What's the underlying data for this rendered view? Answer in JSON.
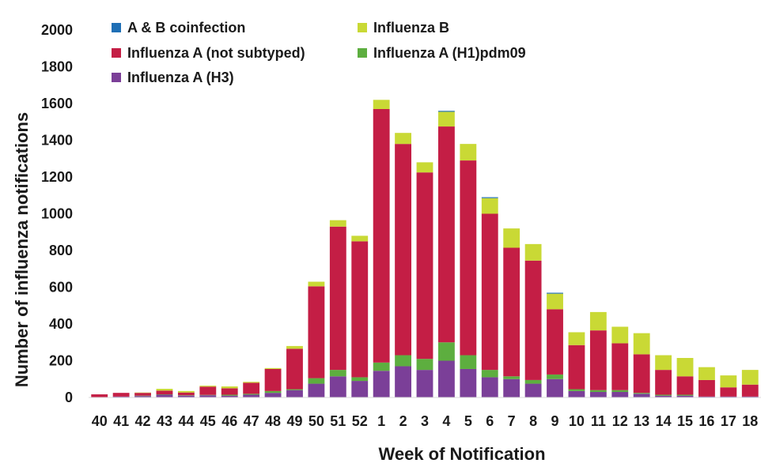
{
  "chart_data": {
    "type": "bar",
    "stacked": true,
    "xlabel": "Week of Notification",
    "ylabel": "Number of  influenza notifications",
    "ylim": [
      0,
      2000
    ],
    "yticks": [
      0,
      200,
      400,
      600,
      800,
      1000,
      1200,
      1400,
      1600,
      1800,
      2000
    ],
    "grid": false,
    "legend_position": "top-left",
    "categories": [
      "40",
      "41",
      "42",
      "43",
      "44",
      "45",
      "46",
      "47",
      "48",
      "49",
      "50",
      "51",
      "52",
      "1",
      "2",
      "3",
      "4",
      "5",
      "6",
      "7",
      "8",
      "9",
      "10",
      "11",
      "12",
      "13",
      "14",
      "15",
      "16",
      "17",
      "18"
    ],
    "series": [
      {
        "name": "Influenza A (H3)",
        "color": "#7B3F98",
        "values": [
          2,
          5,
          8,
          15,
          10,
          12,
          10,
          15,
          25,
          40,
          75,
          115,
          90,
          145,
          170,
          150,
          200,
          155,
          110,
          100,
          75,
          100,
          35,
          30,
          30,
          20,
          10,
          10,
          5,
          5,
          5
        ]
      },
      {
        "name": "Influenza A (H1)pdm09",
        "color": "#5DAE3F",
        "values": [
          0,
          0,
          2,
          2,
          2,
          2,
          5,
          5,
          10,
          5,
          30,
          35,
          20,
          45,
          60,
          60,
          100,
          75,
          40,
          15,
          20,
          25,
          10,
          10,
          10,
          5,
          5,
          5,
          0,
          0,
          0
        ]
      },
      {
        "name": "Influenza A (not subtyped)",
        "color": "#C41E45",
        "values": [
          15,
          20,
          15,
          20,
          15,
          45,
          35,
          60,
          120,
          220,
          500,
          780,
          740,
          1380,
          1150,
          1015,
          1175,
          1060,
          850,
          700,
          650,
          355,
          240,
          325,
          255,
          210,
          135,
          100,
          90,
          50,
          65
        ]
      },
      {
        "name": "Influenza B",
        "color": "#C9D935",
        "values": [
          0,
          0,
          2,
          10,
          8,
          5,
          10,
          5,
          5,
          15,
          25,
          35,
          30,
          50,
          60,
          55,
          80,
          90,
          85,
          105,
          90,
          85,
          70,
          100,
          90,
          115,
          80,
          100,
          70,
          65,
          80
        ]
      },
      {
        "name": "A & B coinfection",
        "color": "#1F6FB5",
        "values": [
          0,
          0,
          0,
          0,
          0,
          0,
          0,
          0,
          0,
          0,
          0,
          0,
          0,
          0,
          0,
          0,
          5,
          0,
          5,
          0,
          0,
          5,
          0,
          0,
          0,
          0,
          0,
          0,
          0,
          0,
          0
        ]
      }
    ],
    "legend": [
      {
        "name": "A & B coinfection",
        "color": "#1F6FB5"
      },
      {
        "name": "Influenza B",
        "color": "#C9D935"
      },
      {
        "name": "Influenza A (not subtyped)",
        "color": "#C41E45"
      },
      {
        "name": "Influenza A (H1)pdm09",
        "color": "#5DAE3F"
      },
      {
        "name": "Influenza A (H3)",
        "color": "#7B3F98"
      }
    ]
  }
}
